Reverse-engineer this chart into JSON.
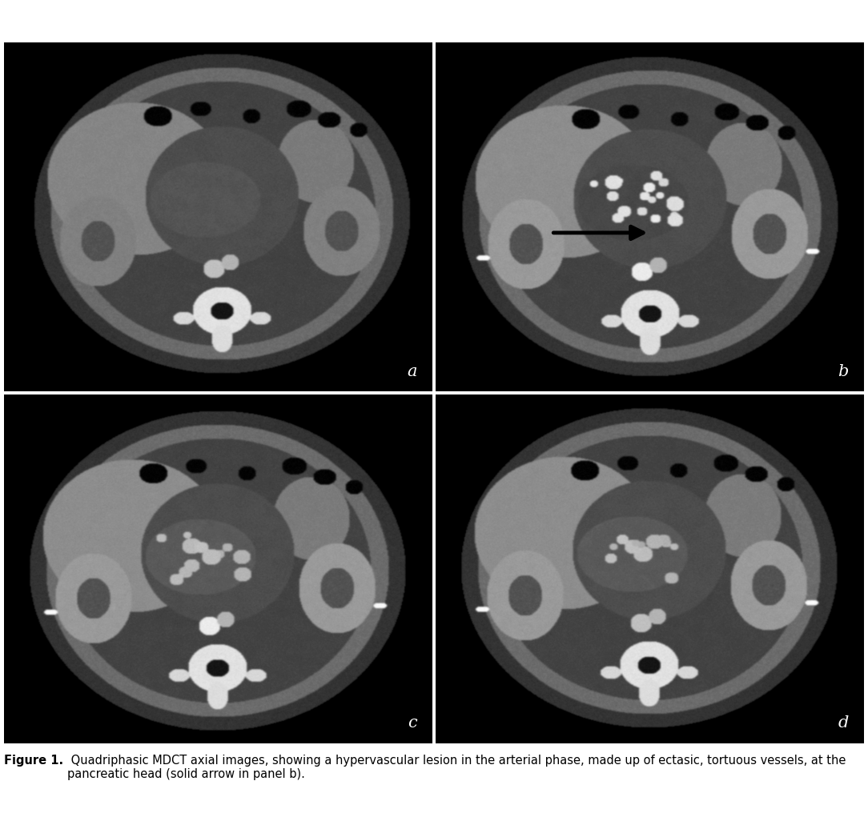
{
  "figure_caption_bold": "Figure 1.",
  "figure_caption_normal": " Quadriphasic MDCT axial images, showing a hypervascular lesion in the arterial phase, made up of ectasic, tortuous vessels, at the pancreatic head (solid arrow in panel b).",
  "panel_labels": [
    "a",
    "b",
    "c",
    "d"
  ],
  "background_color": "#000000",
  "label_color": "#ffffff",
  "caption_color": "#000000",
  "fig_width": 10.84,
  "fig_height": 10.26,
  "caption_fontsize": 10.5,
  "label_fontsize": 15,
  "divider_color": "#ffffff",
  "white_line_color": "#ffffff"
}
